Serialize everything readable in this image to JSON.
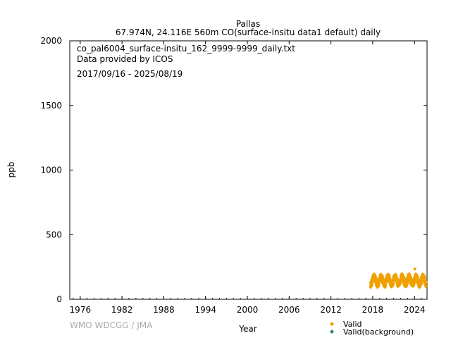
{
  "chart_data": {
    "type": "scatter",
    "title": "Pallas",
    "subtitle": "67.974N, 24.116E 560m    CO(surface-insitu data1 default) daily",
    "annotations": [
      "co_pal6004_surface-insitu_162_9999-9999_daily.txt",
      "Data provided by ICOS",
      "2017/09/16 - 2025/08/19"
    ],
    "xlabel": "Year",
    "ylabel": "ppb",
    "xlim": [
      1974.5,
      2025.8
    ],
    "ylim": [
      0,
      2000
    ],
    "x_ticks": [
      "1976",
      "1982",
      "1988",
      "1994",
      "2000",
      "2006",
      "2012",
      "2018",
      "2024"
    ],
    "y_ticks": [
      "0",
      "500",
      "1000",
      "1500",
      "2000"
    ],
    "grid": false,
    "legend_position": "bottom-right",
    "credit": "WMO WDCGG / JMA",
    "series": [
      {
        "name": "Valid",
        "color": "#f0a000",
        "marker": "diamond",
        "start": "2017/09/16",
        "end": "2025/08/19",
        "seasonal_profile": {
          "peak_month": "March",
          "trough_month": "August",
          "typical_max": 200,
          "typical_min": 90,
          "extreme_max": 235
        }
      },
      {
        "name": "Valid(background)",
        "color": "#2e8b57",
        "marker": "diamond",
        "values": []
      }
    ]
  }
}
